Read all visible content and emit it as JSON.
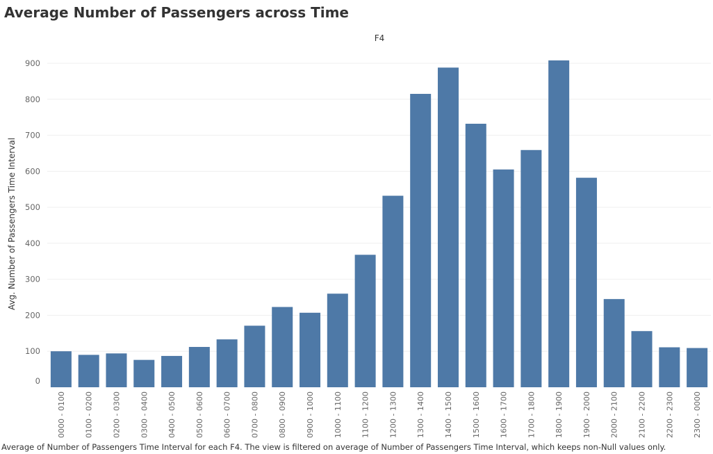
{
  "title": "Average Number of Passengers across Time",
  "footnote": "Average of Number of Passengers Time Interval for each F4. The view is filtered on average of Number of Passengers Time Interval, which keeps non-Null values only.",
  "colors": {
    "bar": "#4e79a7",
    "grid": "#efefef",
    "text": "#333333",
    "tick_text": "#666666"
  },
  "chart_data": {
    "type": "bar",
    "title": "F4",
    "xlabel": "",
    "ylabel": "Avg. Number of Passengers Time Interval",
    "ylim": [
      0,
      900
    ],
    "yticks": [
      0,
      100,
      200,
      300,
      400,
      500,
      600,
      700,
      800,
      900
    ],
    "grid": true,
    "categories": [
      "0000 - 0100",
      "0100 - 0200",
      "0200 - 0300",
      "0300 - 0400",
      "0400 - 0500",
      "0500 - 0600",
      "0600 - 0700",
      "0700 - 0800",
      "0800 - 0900",
      "0900 - 1000",
      "1000 - 1100",
      "1100 - 1200",
      "1200 - 1300",
      "1300 - 1400",
      "1400 - 1500",
      "1500 - 1600",
      "1600 - 1700",
      "1700 - 1800",
      "1800 - 1900",
      "1900 - 2000",
      "2000 - 2100",
      "2100 - 2200",
      "2200 - 2300",
      "2300 - 0000"
    ],
    "values": [
      100,
      90,
      94,
      76,
      87,
      112,
      133,
      171,
      223,
      207,
      260,
      368,
      532,
      815,
      888,
      732,
      605,
      659,
      908,
      582,
      245,
      156,
      111,
      109
    ]
  }
}
